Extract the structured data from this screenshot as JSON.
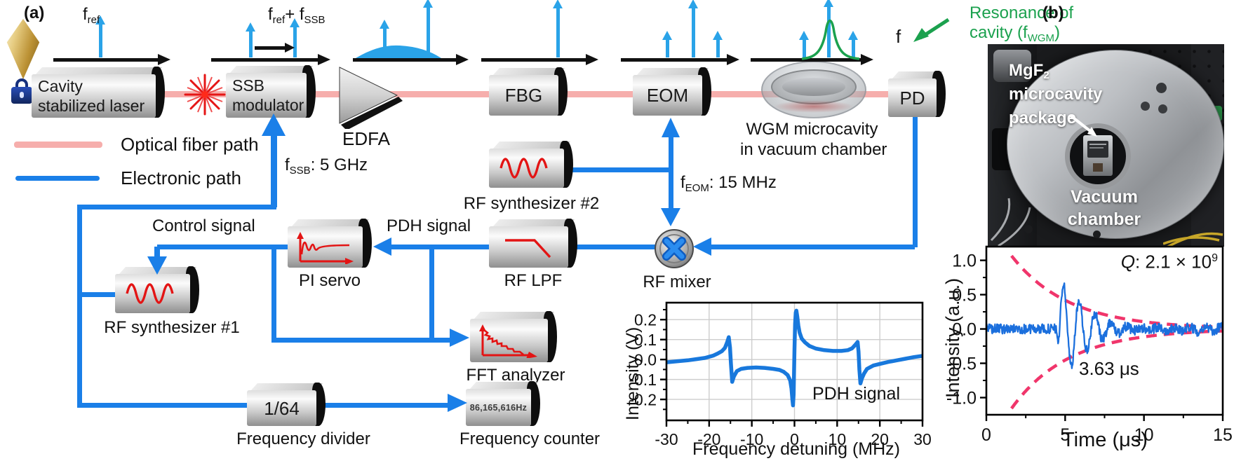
{
  "a": {
    "panel_label": "(a)",
    "legend_optical": "Optical fiber path",
    "legend_electronic": "Electronic path",
    "laser_l1": "Cavity",
    "laser_l2": "stabilized laser",
    "ssb_l1": "SSB",
    "ssb_l2": "modulator",
    "edfa": "EDFA",
    "fbg": "FBG",
    "eom": "EOM",
    "pd": "PD",
    "wgm_l1": "WGM microcavity",
    "wgm_l2": "in vacuum chamber",
    "res_l1": "Resonance of",
    "res_l2a": "cavity (f",
    "res_l2s": "WGM",
    "res_l2b": ")",
    "f_axis": "f",
    "fref_b": "f",
    "fref_s": "ref",
    "fout_b1": "f",
    "fout_s1": "ref",
    "fout_b2": "+ f",
    "fout_s2": "SSB",
    "fssb_b": "f",
    "fssb_s": "SSB",
    "fssb_post": ": 5 GHz",
    "feom_b": "f",
    "feom_s": "EOM",
    "feom_post": ": 15 MHz",
    "control": "Control signal",
    "pdh": "PDH signal",
    "synth2": "RF synthesizer #2",
    "synth1": "RF synthesizer #1",
    "lpf": "RF LPF",
    "mixer": "RF mixer",
    "piservo": "PI servo",
    "fft": "FFT analyzer",
    "divider_value": "1/64",
    "divider": "Frequency divider",
    "counter_display": "86,165,616Hz",
    "counter": "Frequency counter"
  },
  "b": {
    "panel_label": "(b)",
    "mgf2_b": "MgF",
    "mgf2_s": "2",
    "mgf2_l2": "microcavity",
    "mgf2_l3": "package",
    "vac_l1": "Vacuum",
    "vac_l2": "chamber"
  },
  "chart_data": [
    {
      "type": "line",
      "annotation": "PDH signal",
      "xlabel": "Frequency detuning (MHz)",
      "ylabel": "Intensity (V)",
      "xlim": [
        -30,
        30
      ],
      "ylim": [
        -0.305,
        0.285
      ],
      "xticks": [
        -30,
        -20,
        -10,
        0,
        10,
        20,
        30
      ],
      "xtick_labels": [
        "-30",
        "-20",
        "-10",
        "0",
        "10",
        "20",
        "30"
      ],
      "xminor": [
        -25,
        -15,
        -5,
        5,
        15,
        25
      ],
      "yticks": [
        0.2,
        0.1,
        0,
        -0.1,
        -0.2
      ],
      "ytick_labels": [
        "0.2",
        "0.1",
        "0.0",
        "-0.1",
        "-0.2"
      ],
      "yminor": [
        0.25,
        0.15,
        0.05,
        -0.05,
        -0.15,
        -0.25
      ],
      "grid": true,
      "legend_position": "none",
      "line_color": "#1878dc",
      "points": [
        [
          -30,
          -0.014
        ],
        [
          -27,
          -0.008
        ],
        [
          -25,
          -0.004
        ],
        [
          -23,
          0.002
        ],
        [
          -21,
          0.008
        ],
        [
          -19,
          0.02
        ],
        [
          -18,
          0.03
        ],
        [
          -17,
          0.042
        ],
        [
          -16.3,
          0.058
        ],
        [
          -15.8,
          0.085
        ],
        [
          -15.4,
          0.112
        ],
        [
          -15.1,
          0.06
        ],
        [
          -14.9,
          -0.02
        ],
        [
          -14.6,
          -0.112
        ],
        [
          -14.2,
          -0.085
        ],
        [
          -13.5,
          -0.058
        ],
        [
          -12.5,
          -0.047
        ],
        [
          -11,
          -0.042
        ],
        [
          -9,
          -0.04
        ],
        [
          -7,
          -0.042
        ],
        [
          -5,
          -0.047
        ],
        [
          -3.5,
          -0.052
        ],
        [
          -2.5,
          -0.062
        ],
        [
          -1.6,
          -0.078
        ],
        [
          -1,
          -0.105
        ],
        [
          -0.7,
          -0.145
        ],
        [
          -0.5,
          -0.2
        ],
        [
          -0.35,
          -0.23
        ],
        [
          -0.2,
          -0.175
        ],
        [
          -0.1,
          -0.06
        ],
        [
          0,
          0.05
        ],
        [
          0.15,
          0.18
        ],
        [
          0.3,
          0.235
        ],
        [
          0.45,
          0.245
        ],
        [
          0.65,
          0.215
        ],
        [
          0.9,
          0.17
        ],
        [
          1.2,
          0.135
        ],
        [
          1.7,
          0.105
        ],
        [
          2.5,
          0.085
        ],
        [
          3.5,
          0.068
        ],
        [
          5,
          0.055
        ],
        [
          7,
          0.047
        ],
        [
          9,
          0.043
        ],
        [
          11,
          0.043
        ],
        [
          12.5,
          0.047
        ],
        [
          13.5,
          0.056
        ],
        [
          14.3,
          0.075
        ],
        [
          14.8,
          0.088
        ],
        [
          15,
          0.04
        ],
        [
          15.2,
          -0.05
        ],
        [
          15.45,
          -0.12
        ],
        [
          15.8,
          -0.095
        ],
        [
          16.3,
          -0.07
        ],
        [
          17,
          -0.047
        ],
        [
          18.5,
          -0.03
        ],
        [
          20,
          -0.022
        ],
        [
          22,
          -0.012
        ],
        [
          24,
          -0.004
        ],
        [
          26,
          0.004
        ],
        [
          28,
          0.012
        ],
        [
          30,
          0.018
        ]
      ]
    },
    {
      "type": "line",
      "q_label": {
        "q": "Q",
        "rest": ": 2.1 × 10",
        "sup": "9"
      },
      "decay_label": "3.63 μs",
      "xlabel": "Time (μs)",
      "ylabel": "Intensity (a.u.)",
      "xlim": [
        0,
        15
      ],
      "ylim": [
        -1.25,
        1.2
      ],
      "xticks": [
        0,
        5,
        10,
        15
      ],
      "xtick_labels": [
        "0",
        "5",
        "10",
        "15"
      ],
      "xminor": [
        2.5,
        7.5,
        12.5
      ],
      "yticks": [
        1.0,
        0.5,
        0,
        -0.5,
        -1.0
      ],
      "ytick_labels": [
        "1.0",
        "0.5",
        "0.0",
        "-0.5",
        "-1.0"
      ],
      "yminor": [
        0.75,
        0.25,
        -0.25,
        -0.75
      ],
      "grid": false,
      "legend_position": "none",
      "line_color": "#1b6fdd",
      "ringdown_tau_us": 3.63,
      "signal": {
        "noise_amp": 0.07,
        "burst_t": 4.45,
        "burst_amp": 0.75,
        "carrier_per_us": 1.0,
        "decay_tau": 3.3,
        "beat_freq": 0.09
      },
      "envelope": {
        "amp": 1.06,
        "t0_upper": 1.62,
        "t0_lower": 1.92,
        "tau": 3.63,
        "color": "#f0356b",
        "start_t": 1.6
      }
    }
  ]
}
